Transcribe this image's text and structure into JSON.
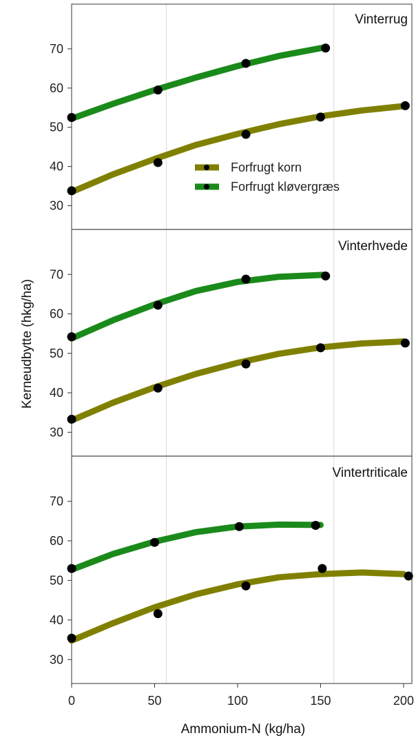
{
  "chart_data": {
    "type": "line",
    "xlabel": "Ammonium-N (kg/ha)",
    "ylabel": "Kerneudbytte (hkg/ha)",
    "xlim": [
      0,
      205
    ],
    "ylim": [
      25,
      80
    ],
    "x_ticks": [
      0,
      50,
      100,
      150,
      200
    ],
    "y_ticks": [
      30,
      40,
      50,
      60,
      70
    ],
    "grid": "vertical lines at x=57 and x=158",
    "legend": {
      "placement": "inside first panel, center-right",
      "entries": [
        "Forfrugt korn",
        "Forfrugt kløvergræs"
      ]
    },
    "colors": {
      "Forfrugt korn": "#808000",
      "Forfrugt kløvergræs": "#1a8a1a",
      "points": "#000000"
    },
    "panels": [
      {
        "title": "Vinterrug",
        "series": [
          {
            "name": "Forfrugt korn",
            "points": [
              [
                0,
                33.8
              ],
              [
                52,
                41.0
              ],
              [
                105,
                48.2
              ],
              [
                150,
                52.6
              ],
              [
                201,
                55.5
              ]
            ],
            "fit": [
              [
                0,
                33.5
              ],
              [
                25,
                38.0
              ],
              [
                50,
                41.9
              ],
              [
                75,
                45.5
              ],
              [
                100,
                48.3
              ],
              [
                125,
                50.8
              ],
              [
                150,
                52.8
              ],
              [
                175,
                54.3
              ],
              [
                200,
                55.4
              ]
            ]
          },
          {
            "name": "Forfrugt kløvergræs",
            "points": [
              [
                0,
                52.5
              ],
              [
                52,
                59.5
              ],
              [
                105,
                66.3
              ],
              [
                153,
                70.2
              ]
            ],
            "fit": [
              [
                0,
                52.2
              ],
              [
                25,
                56.0
              ],
              [
                50,
                59.5
              ],
              [
                75,
                62.7
              ],
              [
                100,
                65.6
              ],
              [
                125,
                68.2
              ],
              [
                153,
                70.4
              ]
            ]
          }
        ]
      },
      {
        "title": "Vinterhvede",
        "series": [
          {
            "name": "Forfrugt korn",
            "points": [
              [
                0,
                33.3
              ],
              [
                52,
                41.2
              ],
              [
                105,
                47.3
              ],
              [
                150,
                51.4
              ],
              [
                201,
                52.6
              ]
            ],
            "fit": [
              [
                0,
                33.0
              ],
              [
                25,
                37.5
              ],
              [
                50,
                41.4
              ],
              [
                75,
                44.8
              ],
              [
                100,
                47.6
              ],
              [
                125,
                49.9
              ],
              [
                150,
                51.5
              ],
              [
                175,
                52.5
              ],
              [
                200,
                53.0
              ]
            ]
          },
          {
            "name": "Forfrugt kløvergræs",
            "points": [
              [
                0,
                54.2
              ],
              [
                52,
                62.2
              ],
              [
                105,
                68.8
              ],
              [
                153,
                69.6
              ]
            ],
            "fit": [
              [
                0,
                53.8
              ],
              [
                25,
                58.4
              ],
              [
                50,
                62.4
              ],
              [
                75,
                65.8
              ],
              [
                100,
                68.1
              ],
              [
                125,
                69.4
              ],
              [
                153,
                69.9
              ]
            ]
          }
        ]
      },
      {
        "title": "Vintertriticale",
        "series": [
          {
            "name": "Forfrugt korn",
            "points": [
              [
                0,
                35.4
              ],
              [
                52,
                41.6
              ],
              [
                105,
                48.6
              ],
              [
                151,
                53.0
              ],
              [
                203,
                51.1
              ]
            ],
            "fit": [
              [
                0,
                34.8
              ],
              [
                25,
                39.2
              ],
              [
                50,
                43.2
              ],
              [
                75,
                46.5
              ],
              [
                100,
                49.0
              ],
              [
                125,
                50.8
              ],
              [
                150,
                51.6
              ],
              [
                175,
                52.0
              ],
              [
                200,
                51.6
              ]
            ]
          },
          {
            "name": "Forfrugt kløvergræs",
            "points": [
              [
                0,
                53.0
              ],
              [
                50,
                59.6
              ],
              [
                101,
                63.6
              ],
              [
                147,
                63.9
              ]
            ],
            "fit": [
              [
                0,
                52.7
              ],
              [
                25,
                56.7
              ],
              [
                50,
                59.8
              ],
              [
                75,
                62.2
              ],
              [
                100,
                63.6
              ],
              [
                125,
                64.1
              ],
              [
                150,
                64.0
              ]
            ]
          }
        ]
      }
    ]
  }
}
